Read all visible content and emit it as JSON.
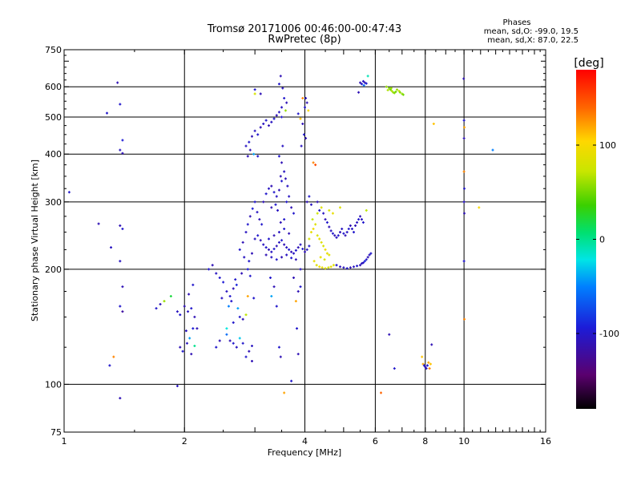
{
  "chart_data": {
    "type": "scatter",
    "title": "Tromsø 20171006 00:46:00-00:47:43",
    "subtitle": "RwPretec (8p)",
    "stats": {
      "heading": "Phases",
      "line_o": "mean, sd,O: -99.0, 19.5",
      "line_x": "mean, sd,X:  87.0, 22.5"
    },
    "xlabel": "Frequency [MHz]",
    "ylabel": "Stationary phase Virtual Height [km]",
    "x_scale": "log",
    "y_scale": "log",
    "xlim": [
      1,
      16
    ],
    "ylim": [
      75,
      750
    ],
    "x_ticks": [
      1,
      2,
      4,
      6,
      8,
      10,
      16
    ],
    "x_tick_labels": [
      "1",
      "2",
      "4",
      "6",
      "8",
      "10",
      "16"
    ],
    "y_ticks": [
      75,
      100,
      200,
      300,
      400,
      500,
      600,
      750
    ],
    "y_tick_labels": [
      "75",
      "100",
      "200",
      "300",
      "400",
      "500",
      "600",
      "750"
    ],
    "x_grid": [
      2,
      4,
      6,
      8,
      10
    ],
    "y_grid": [
      100,
      200,
      300,
      400,
      500,
      600
    ],
    "grid": true,
    "colorbar": {
      "label": "[deg]",
      "range": [
        -180,
        180
      ],
      "ticks": [
        100,
        0,
        -100
      ],
      "tick_labels": [
        "100",
        "0",
        "-100"
      ]
    },
    "points": [
      [
        1.03,
        318,
        -100
      ],
      [
        1.22,
        263,
        -110
      ],
      [
        1.28,
        512,
        -100
      ],
      [
        1.31,
        228,
        -105
      ],
      [
        1.36,
        615,
        -110
      ],
      [
        1.38,
        540,
        -100
      ],
      [
        1.38,
        410,
        -105
      ],
      [
        1.4,
        402,
        -110
      ],
      [
        1.4,
        435,
        -95
      ],
      [
        1.38,
        260,
        -110
      ],
      [
        1.4,
        255,
        -100
      ],
      [
        1.38,
        210,
        -105
      ],
      [
        1.4,
        180,
        -110
      ],
      [
        1.38,
        160,
        -100
      ],
      [
        1.4,
        155,
        -120
      ],
      [
        1.38,
        92,
        -110
      ],
      [
        1.3,
        112,
        -100
      ],
      [
        1.33,
        118,
        130
      ],
      [
        1.7,
        158,
        -100
      ],
      [
        1.74,
        162,
        -110
      ],
      [
        1.78,
        165,
        60
      ],
      [
        1.85,
        170,
        20
      ],
      [
        1.92,
        155,
        -105
      ],
      [
        1.95,
        152,
        -100
      ],
      [
        2.0,
        160,
        -110
      ],
      [
        2.04,
        155,
        -105
      ],
      [
        2.08,
        158,
        -100
      ],
      [
        2.12,
        150,
        -110
      ],
      [
        2.1,
        140,
        -95
      ],
      [
        2.02,
        138,
        -105
      ],
      [
        1.95,
        125,
        -110
      ],
      [
        1.98,
        122,
        -100
      ],
      [
        2.03,
        128,
        -105
      ],
      [
        2.08,
        120,
        -110
      ],
      [
        2.12,
        126,
        0
      ],
      [
        2.06,
        132,
        -40
      ],
      [
        1.92,
        99,
        -105
      ],
      [
        2.15,
        140,
        -110
      ],
      [
        2.1,
        182,
        -100
      ],
      [
        2.05,
        172,
        -110
      ],
      [
        2.3,
        200,
        -100
      ],
      [
        2.35,
        205,
        -110
      ],
      [
        2.4,
        195,
        -105
      ],
      [
        2.45,
        190,
        -100
      ],
      [
        2.5,
        185,
        -95
      ],
      [
        2.55,
        175,
        -105
      ],
      [
        2.6,
        170,
        -100
      ],
      [
        2.65,
        178,
        -110
      ],
      [
        2.7,
        182,
        -90
      ],
      [
        2.62,
        165,
        -100
      ],
      [
        2.48,
        168,
        -105
      ],
      [
        2.58,
        160,
        -50
      ],
      [
        2.72,
        158,
        -40
      ],
      [
        2.75,
        150,
        -100
      ],
      [
        2.8,
        148,
        -110
      ],
      [
        2.85,
        152,
        70
      ],
      [
        2.68,
        188,
        -100
      ],
      [
        2.78,
        195,
        -110
      ],
      [
        2.88,
        200,
        -95
      ],
      [
        2.92,
        192,
        -100
      ],
      [
        2.55,
        135,
        -60
      ],
      [
        2.6,
        130,
        -110
      ],
      [
        2.65,
        128,
        -100
      ],
      [
        2.7,
        125,
        -105
      ],
      [
        2.75,
        132,
        -30
      ],
      [
        2.8,
        128,
        -100
      ],
      [
        2.9,
        122,
        -110
      ],
      [
        2.95,
        126,
        -105
      ],
      [
        2.85,
        118,
        -100
      ],
      [
        2.95,
        115,
        -110
      ],
      [
        2.4,
        125,
        -100
      ],
      [
        2.45,
        130,
        -110
      ],
      [
        2.55,
        140,
        -20
      ],
      [
        2.65,
        145,
        -100
      ],
      [
        2.88,
        170,
        120
      ],
      [
        2.98,
        168,
        -100
      ],
      [
        2.75,
        225,
        -100
      ],
      [
        2.8,
        235,
        -110
      ],
      [
        2.85,
        250,
        -105
      ],
      [
        2.88,
        262,
        -100
      ],
      [
        2.92,
        275,
        -110
      ],
      [
        2.96,
        288,
        -95
      ],
      [
        3.0,
        300,
        -100
      ],
      [
        3.04,
        282,
        -105
      ],
      [
        3.08,
        270,
        -110
      ],
      [
        3.12,
        262,
        -100
      ],
      [
        2.82,
        215,
        -105
      ],
      [
        2.9,
        210,
        -100
      ],
      [
        2.95,
        220,
        -110
      ],
      [
        3.0,
        240,
        -105
      ],
      [
        3.05,
        245,
        -100
      ],
      [
        3.1,
        238,
        -110
      ],
      [
        3.15,
        232,
        -105
      ],
      [
        3.2,
        228,
        -100
      ],
      [
        3.25,
        225,
        -110
      ],
      [
        3.3,
        222,
        -105
      ],
      [
        3.35,
        226,
        -100
      ],
      [
        3.4,
        230,
        -110
      ],
      [
        3.45,
        235,
        -105
      ],
      [
        3.5,
        238,
        -100
      ],
      [
        3.55,
        232,
        -110
      ],
      [
        3.6,
        228,
        -105
      ],
      [
        3.65,
        225,
        -100
      ],
      [
        3.7,
        222,
        -110
      ],
      [
        3.75,
        220,
        -105
      ],
      [
        3.8,
        224,
        -100
      ],
      [
        3.85,
        228,
        -110
      ],
      [
        3.9,
        232,
        -105
      ],
      [
        3.95,
        226,
        -100
      ],
      [
        4.0,
        222,
        -110
      ],
      [
        4.05,
        225,
        -105
      ],
      [
        4.1,
        230,
        -100
      ],
      [
        3.2,
        218,
        -110
      ],
      [
        3.3,
        215,
        -105
      ],
      [
        3.4,
        212,
        -100
      ],
      [
        3.5,
        215,
        -110
      ],
      [
        3.6,
        218,
        -105
      ],
      [
        3.7,
        214,
        -100
      ],
      [
        3.8,
        212,
        -110
      ],
      [
        3.25,
        240,
        -100
      ],
      [
        3.35,
        245,
        -110
      ],
      [
        3.45,
        250,
        -105
      ],
      [
        3.55,
        255,
        -100
      ],
      [
        3.65,
        248,
        -110
      ],
      [
        3.15,
        300,
        -110
      ],
      [
        3.2,
        315,
        -100
      ],
      [
        3.25,
        325,
        -105
      ],
      [
        3.3,
        330,
        -110
      ],
      [
        3.35,
        318,
        -100
      ],
      [
        3.4,
        310,
        -105
      ],
      [
        3.45,
        322,
        -110
      ],
      [
        3.5,
        340,
        -100
      ],
      [
        3.55,
        360,
        -105
      ],
      [
        3.5,
        380,
        -110
      ],
      [
        3.45,
        395,
        -100
      ],
      [
        3.52,
        420,
        -105
      ],
      [
        3.48,
        350,
        -110
      ],
      [
        3.38,
        295,
        -100
      ],
      [
        3.42,
        285,
        -105
      ],
      [
        3.3,
        290,
        -110
      ],
      [
        3.6,
        300,
        -100
      ],
      [
        3.65,
        310,
        -105
      ],
      [
        3.7,
        290,
        -110
      ],
      [
        3.75,
        280,
        -100
      ],
      [
        3.62,
        330,
        -105
      ],
      [
        3.58,
        345,
        -110
      ],
      [
        3.55,
        270,
        -100
      ],
      [
        3.48,
        265,
        -110
      ],
      [
        2.9,
        430,
        -100
      ],
      [
        2.95,
        445,
        -110
      ],
      [
        3.0,
        460,
        -105
      ],
      [
        3.05,
        450,
        -100
      ],
      [
        3.1,
        470,
        -110
      ],
      [
        3.15,
        480,
        -105
      ],
      [
        3.2,
        490,
        -100
      ],
      [
        3.25,
        475,
        -110
      ],
      [
        3.3,
        485,
        -105
      ],
      [
        3.35,
        495,
        -100
      ],
      [
        3.4,
        505,
        -110
      ],
      [
        3.45,
        515,
        -105
      ],
      [
        3.5,
        500,
        -100
      ],
      [
        2.85,
        420,
        -105
      ],
      [
        2.92,
        410,
        -110
      ],
      [
        2.98,
        400,
        -40
      ],
      [
        3.05,
        395,
        -100
      ],
      [
        2.88,
        395,
        -110
      ],
      [
        3.0,
        590,
        -100
      ],
      [
        3.1,
        575,
        -110
      ],
      [
        3.45,
        610,
        -100
      ],
      [
        3.48,
        640,
        -110
      ],
      [
        3.52,
        595,
        -105
      ],
      [
        3.55,
        560,
        -100
      ],
      [
        3.6,
        545,
        -110
      ],
      [
        3.5,
        530,
        -105
      ],
      [
        3.58,
        520,
        60
      ],
      [
        3.0,
        575,
        80
      ],
      [
        3.85,
        510,
        -100
      ],
      [
        3.9,
        495,
        110
      ],
      [
        3.95,
        480,
        -110
      ],
      [
        4.0,
        530,
        -100
      ],
      [
        4.02,
        560,
        -105
      ],
      [
        4.05,
        545,
        -110
      ],
      [
        4.08,
        520,
        100
      ],
      [
        3.95,
        560,
        130
      ],
      [
        3.98,
        450,
        -100
      ],
      [
        4.02,
        440,
        -110
      ],
      [
        3.92,
        420,
        -105
      ],
      [
        4.1,
        240,
        80
      ],
      [
        4.15,
        250,
        90
      ],
      [
        4.2,
        255,
        95
      ],
      [
        4.25,
        262,
        85
      ],
      [
        4.18,
        270,
        70
      ],
      [
        4.3,
        245,
        80
      ],
      [
        4.35,
        240,
        90
      ],
      [
        4.4,
        235,
        85
      ],
      [
        4.45,
        230,
        80
      ],
      [
        4.5,
        225,
        95
      ],
      [
        4.55,
        220,
        90
      ],
      [
        4.6,
        218,
        85
      ],
      [
        4.22,
        210,
        90
      ],
      [
        4.28,
        205,
        85
      ],
      [
        4.35,
        203,
        95
      ],
      [
        4.42,
        202,
        90
      ],
      [
        4.5,
        201,
        85
      ],
      [
        4.58,
        202,
        80
      ],
      [
        4.65,
        203,
        90
      ],
      [
        4.72,
        205,
        85
      ],
      [
        4.38,
        215,
        90
      ],
      [
        4.48,
        212,
        80
      ],
      [
        4.3,
        280,
        75
      ],
      [
        4.4,
        290,
        85
      ],
      [
        4.2,
        380,
        130
      ],
      [
        4.25,
        375,
        150
      ],
      [
        4.05,
        300,
        -110
      ],
      [
        4.1,
        310,
        -100
      ],
      [
        4.15,
        295,
        -105
      ],
      [
        4.3,
        300,
        -110
      ],
      [
        4.35,
        285,
        -100
      ],
      [
        4.45,
        280,
        -105
      ],
      [
        4.5,
        270,
        -110
      ],
      [
        4.55,
        265,
        -100
      ],
      [
        4.6,
        258,
        -110
      ],
      [
        4.65,
        252,
        -105
      ],
      [
        4.7,
        248,
        -100
      ],
      [
        4.75,
        245,
        -110
      ],
      [
        4.8,
        242,
        -105
      ],
      [
        4.85,
        245,
        -100
      ],
      [
        4.9,
        250,
        -110
      ],
      [
        4.95,
        255,
        -105
      ],
      [
        5.0,
        248,
        -100
      ],
      [
        5.05,
        245,
        -110
      ],
      [
        5.1,
        250,
        -105
      ],
      [
        5.15,
        255,
        -100
      ],
      [
        5.2,
        260,
        -110
      ],
      [
        5.25,
        255,
        -105
      ],
      [
        5.3,
        250,
        -100
      ],
      [
        5.35,
        260,
        -110
      ],
      [
        5.4,
        265,
        -105
      ],
      [
        5.45,
        270,
        -100
      ],
      [
        5.5,
        275,
        -110
      ],
      [
        5.55,
        270,
        -105
      ],
      [
        5.6,
        265,
        -100
      ],
      [
        4.6,
        285,
        80
      ],
      [
        4.7,
        280,
        90
      ],
      [
        4.9,
        290,
        85
      ],
      [
        4.8,
        205,
        -100
      ],
      [
        4.9,
        203,
        -110
      ],
      [
        5.0,
        202,
        -105
      ],
      [
        5.1,
        201,
        -100
      ],
      [
        5.2,
        202,
        -110
      ],
      [
        5.3,
        203,
        -105
      ],
      [
        5.4,
        204,
        -100
      ],
      [
        5.5,
        205,
        -110
      ],
      [
        5.6,
        208,
        -105
      ],
      [
        5.7,
        212,
        -100
      ],
      [
        5.75,
        215,
        -110
      ],
      [
        5.8,
        218,
        -105
      ],
      [
        5.85,
        220,
        -100
      ],
      [
        5.65,
        210,
        -90
      ],
      [
        5.55,
        207,
        -105
      ],
      [
        5.5,
        615,
        -110
      ],
      [
        5.55,
        610,
        -100
      ],
      [
        5.6,
        620,
        -105
      ],
      [
        5.65,
        615,
        -110
      ],
      [
        5.7,
        612,
        -100
      ],
      [
        5.62,
        605,
        -60
      ],
      [
        5.45,
        580,
        -110
      ],
      [
        5.75,
        640,
        -10
      ],
      [
        5.7,
        285,
        70
      ],
      [
        3.85,
        175,
        -110
      ],
      [
        3.9,
        180,
        -100
      ],
      [
        3.8,
        165,
        120
      ],
      [
        3.82,
        140,
        -100
      ],
      [
        3.85,
        120,
        -110
      ],
      [
        3.7,
        102,
        -100
      ],
      [
        3.9,
        200,
        -105
      ],
      [
        3.75,
        190,
        -110
      ],
      [
        3.45,
        125,
        -100
      ],
      [
        3.48,
        118,
        -110
      ],
      [
        3.55,
        95,
        120
      ],
      [
        3.4,
        160,
        -100
      ],
      [
        3.35,
        180,
        -110
      ],
      [
        3.3,
        170,
        -40
      ],
      [
        3.28,
        190,
        -100
      ],
      [
        6.2,
        95,
        140
      ],
      [
        6.5,
        135,
        -110
      ],
      [
        6.7,
        110,
        -100
      ],
      [
        6.4,
        600,
        60
      ],
      [
        6.5,
        595,
        55
      ],
      [
        6.55,
        590,
        50
      ],
      [
        6.6,
        585,
        65
      ],
      [
        6.65,
        580,
        60
      ],
      [
        6.7,
        578,
        55
      ],
      [
        6.75,
        582,
        50
      ],
      [
        6.8,
        590,
        60
      ],
      [
        6.88,
        585,
        70
      ],
      [
        6.92,
        580,
        55
      ],
      [
        7.0,
        575,
        60
      ],
      [
        7.05,
        572,
        50
      ],
      [
        6.45,
        588,
        65
      ],
      [
        6.58,
        595,
        60
      ],
      [
        7.85,
        118,
        110
      ],
      [
        7.9,
        113,
        120
      ],
      [
        7.95,
        112,
        -100
      ],
      [
        8.0,
        111,
        -110
      ],
      [
        8.05,
        110,
        -105
      ],
      [
        8.1,
        112,
        -100
      ],
      [
        8.15,
        114,
        120
      ],
      [
        8.2,
        110,
        130
      ],
      [
        8.25,
        113,
        110
      ],
      [
        8.3,
        127,
        -110
      ],
      [
        8.4,
        480,
        110
      ],
      [
        9.98,
        630,
        -110
      ],
      [
        10.0,
        490,
        -100
      ],
      [
        10.02,
        470,
        120
      ],
      [
        10.0,
        360,
        130
      ],
      [
        10.02,
        325,
        -100
      ],
      [
        10.0,
        300,
        -105
      ],
      [
        10.02,
        280,
        -110
      ],
      [
        10.0,
        210,
        -100
      ],
      [
        10.02,
        148,
        130
      ],
      [
        10.0,
        440,
        -110
      ],
      [
        10.9,
        290,
        100
      ],
      [
        11.8,
        410,
        -50
      ]
    ]
  }
}
